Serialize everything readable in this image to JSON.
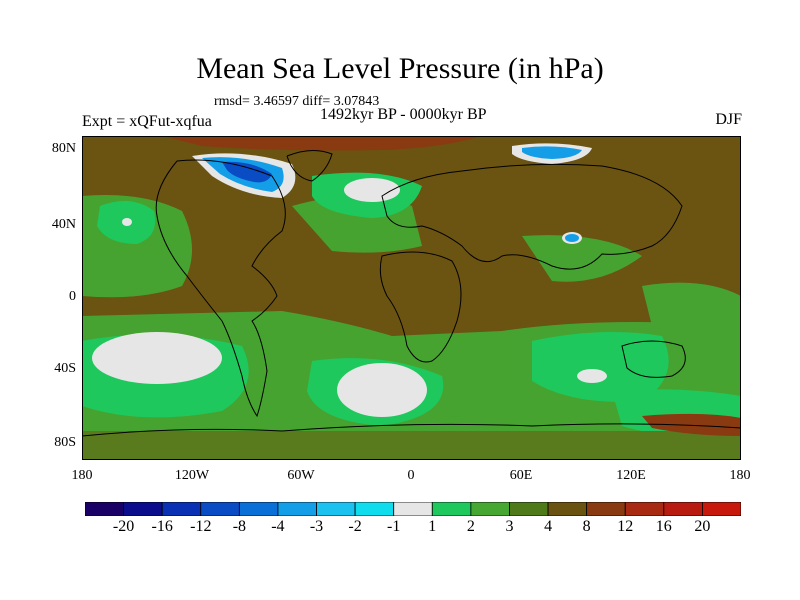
{
  "title": "Mean Sea Level Pressure (in hPa)",
  "stats": "rmsd= 3.46597 diff= 3.07843",
  "experiment": "Expt = xQFut-xqfua",
  "period": "1492kyr BP - 0000kyr BP",
  "season": "DJF",
  "y_ticks": [
    "80N",
    "40N",
    "0",
    "40S",
    "80S"
  ],
  "x_ticks": [
    "180",
    "120W",
    "60W",
    "0",
    "60E",
    "120E",
    "180"
  ],
  "colorbar": {
    "labels": [
      "-20",
      "-16",
      "-12",
      "-8",
      "-4",
      "-3",
      "-2",
      "-1",
      "1",
      "2",
      "3",
      "4",
      "8",
      "12",
      "16",
      "20"
    ],
    "colors": [
      "#1a0066",
      "#0b0d8c",
      "#0a30b4",
      "#0a4cc4",
      "#0a6fd6",
      "#149ee8",
      "#1cc2ef",
      "#0fdcec",
      "#e6e6e6",
      "#1fc85c",
      "#46a833",
      "#4f7a1a",
      "#6a5210",
      "#8a3a10",
      "#a82a12",
      "#b81c10",
      "#c81a0c"
    ]
  },
  "colors": {
    "land_fill": "#6c4d10",
    "ocean_low": "#2fbe55",
    "ocean_mid": "#42a23a",
    "ocean_hi": "#5a8222",
    "near_zero": "#e6e6e6",
    "negative": "#0a60cc",
    "positive": "#8a3010"
  }
}
